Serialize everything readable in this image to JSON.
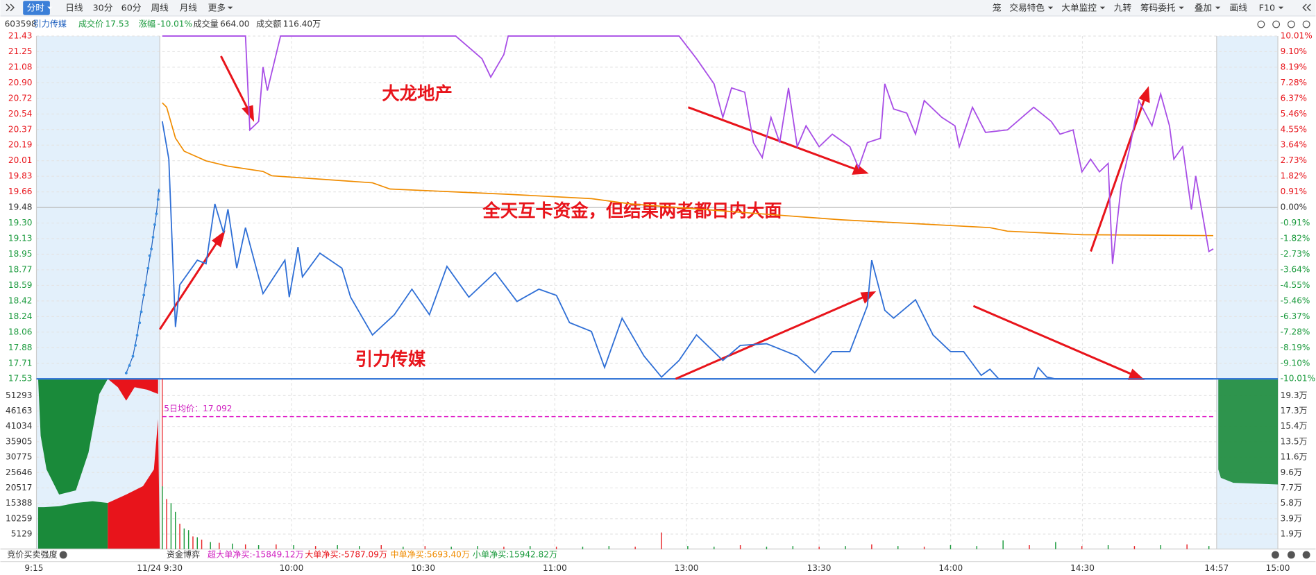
{
  "toolbar": {
    "left": [
      "分时",
      "日线",
      "30分",
      "60分",
      "周线",
      "月线",
      "更多"
    ],
    "right": [
      "笼",
      "交易特色",
      "大单监控",
      "九转",
      "筹码委托",
      "叠加",
      "画线",
      "F10"
    ]
  },
  "info": {
    "code": "603598",
    "name": "引力传媒",
    "price_label": "成交价",
    "price": "17.53",
    "change_label": "涨幅",
    "change": "-10.01%",
    "volume_label": "成交量",
    "volume": "664.00",
    "amount_label": "成交额",
    "amount": "116.40万"
  },
  "price_axis": {
    "left": [
      "21.43",
      "21.25",
      "21.08",
      "20.90",
      "20.72",
      "20.54",
      "20.37",
      "20.19",
      "20.01",
      "19.83",
      "19.66",
      "19.48",
      "19.30",
      "19.13",
      "18.95",
      "18.77",
      "18.59",
      "18.42",
      "18.24",
      "18.06",
      "17.88",
      "17.71",
      "17.53"
    ],
    "right": [
      "10.01%",
      "9.10%",
      "8.19%",
      "7.28%",
      "6.37%",
      "5.46%",
      "4.55%",
      "3.64%",
      "2.73%",
      "1.82%",
      "0.91%",
      "0.00%",
      "-0.91%",
      "-1.82%",
      "-2.73%",
      "-3.64%",
      "-4.55%",
      "-5.46%",
      "-6.37%",
      "-7.28%",
      "-8.19%",
      "-9.10%",
      "-10.01%"
    ]
  },
  "volume_axis": {
    "left": [
      "51293",
      "46163",
      "41034",
      "35905",
      "30775",
      "25646",
      "20517",
      "15388",
      "10259",
      "5129"
    ],
    "right": [
      "19.3万",
      "17.3万",
      "15.4万",
      "13.5万",
      "11.6万",
      "9.6万",
      "7.7万",
      "5.8万",
      "3.9万",
      "1.9万"
    ]
  },
  "time_axis": [
    "9:15",
    "11/24 9:30",
    "10:00",
    "10:30",
    "11:00",
    "13:00",
    "13:30",
    "14:00",
    "14:30",
    "14:57",
    "15:00"
  ],
  "ma5_label": "5日均价：17.092",
  "annotations": [
    "大龙地产",
    "全天互卡资金，但结果两者都日内大面",
    "引力传媒"
  ],
  "price_line": {
    "minutes": [
      0,
      1.5,
      3,
      4,
      8,
      10,
      12,
      14,
      15,
      17,
      19,
      23,
      28,
      29,
      31,
      32,
      36,
      41,
      43,
      48,
      53,
      57,
      61,
      65,
      70,
      76,
      81,
      86,
      90,
      93,
      98,
      101,
      105,
      110,
      114,
      118,
      122,
      128,
      132,
      138,
      145,
      149,
      153,
      157,
      161,
      162,
      165,
      167,
      172,
      176,
      180,
      183,
      187,
      189,
      191,
      199,
      200,
      202,
      204,
      240
    ],
    "prices": [
      20.46,
      20.03,
      18.12,
      18.6,
      18.88,
      18.84,
      19.52,
      19.19,
      19.46,
      18.79,
      19.25,
      18.5,
      18.88,
      18.46,
      19.03,
      18.69,
      18.96,
      18.79,
      18.46,
      18.03,
      18.26,
      18.55,
      18.26,
      18.81,
      18.46,
      18.74,
      18.41,
      18.55,
      18.48,
      18.17,
      18.07,
      17.66,
      18.22,
      17.79,
      17.55,
      17.74,
      18.03,
      17.74,
      17.91,
      17.93,
      17.79,
      17.6,
      17.84,
      17.84,
      18.36,
      18.88,
      18.31,
      18.22,
      18.43,
      18.03,
      17.84,
      17.84,
      17.57,
      17.64,
      17.53,
      17.53,
      17.66,
      17.55,
      17.53,
      17.53
    ]
  },
  "avg_line": {
    "minutes": [
      0,
      1,
      3,
      5,
      10,
      15,
      23,
      25,
      48,
      52,
      79,
      98,
      107,
      136,
      155,
      174,
      189,
      193,
      210,
      240
    ],
    "prices": [
      20.67,
      20.62,
      20.27,
      20.12,
      20.01,
      19.95,
      19.89,
      19.84,
      19.76,
      19.69,
      19.63,
      19.58,
      19.52,
      19.41,
      19.34,
      19.29,
      19.25,
      19.21,
      19.17,
      19.16
    ]
  },
  "overlay_line": {
    "minutes": [
      0,
      19,
      20,
      22,
      23,
      24,
      27,
      67,
      73,
      75,
      78,
      79,
      118,
      122,
      126,
      128,
      130,
      133,
      135,
      137,
      139,
      141,
      143,
      145,
      147,
      150,
      153,
      157,
      159,
      161,
      164,
      165,
      167,
      170,
      172,
      174,
      178,
      181,
      182,
      185,
      188,
      193,
      199,
      203,
      205,
      208,
      210,
      212,
      214,
      216,
      217,
      219,
      221,
      223,
      226,
      228,
      230,
      231,
      233,
      235,
      236,
      239,
      240
    ],
    "percent": [
      10.01,
      10.01,
      4.53,
      5.02,
      8.2,
      6.83,
      10.01,
      10.01,
      8.69,
      7.61,
      8.93,
      10.01,
      10.01,
      8.69,
      7.22,
      5.26,
      6.98,
      6.73,
      3.79,
      2.91,
      5.26,
      3.79,
      6.98,
      3.55,
      4.77,
      3.55,
      4.28,
      3.55,
      2.32,
      3.79,
      4.04,
      7.22,
      5.75,
      5.51,
      4.28,
      6.24,
      5.26,
      4.77,
      3.55,
      5.85,
      4.38,
      4.53,
      5.85,
      5.02,
      4.28,
      4.53,
      2.08,
      2.82,
      2.08,
      2.57,
      -3.3,
      1.35,
      3.55,
      6.24,
      4.77,
      6.63,
      4.77,
      2.82,
      3.55,
      -0.12,
      1.84,
      -2.57,
      -2.42
    ]
  },
  "volume": {
    "minutes": [
      0,
      1,
      2,
      3,
      4,
      5,
      6,
      7,
      8,
      9,
      11,
      13,
      16,
      19,
      22,
      26,
      30,
      35,
      40,
      45,
      50,
      55,
      60,
      66,
      72,
      78,
      84,
      90,
      96,
      102,
      108,
      114,
      120,
      126,
      132,
      138,
      144,
      150,
      156,
      162,
      168,
      174,
      180,
      186,
      192,
      198,
      204,
      210,
      216,
      222,
      228,
      234,
      239
    ],
    "values": [
      7.9,
      6.3,
      5.8,
      4.7,
      3.2,
      2.6,
      2.4,
      1.6,
      1.5,
      1.2,
      0.9,
      0.8,
      0.7,
      0.6,
      0.5,
      0.6,
      0.5,
      0.4,
      0.5,
      0.4,
      0.5,
      0.3,
      0.4,
      0.3,
      0.4,
      0.3,
      0.4,
      0.3,
      0.3,
      0.4,
      0.3,
      2.1,
      0.4,
      0.3,
      0.5,
      0.3,
      0.4,
      0.3,
      0.4,
      0.6,
      0.4,
      0.3,
      0.5,
      0.4,
      1.1,
      0.5,
      0.9,
      0.4,
      0.5,
      0.4,
      0.5,
      0.6,
      0.4
    ],
    "colors": [
      "#1a9a3c",
      "#e8262a",
      "#1a9a3c",
      "#1a9a3c",
      "#e8262a",
      "#1a9a3c",
      "#1a9a3c",
      "#e8262a",
      "#1a9a3c",
      "#e8262a",
      "#1a9a3c",
      "#e8262a",
      "#1a9a3c",
      "#e8262a",
      "#1a9a3c",
      "#e8262a",
      "#1a9a3c",
      "#e8262a",
      "#1a9a3c",
      "#1a9a3c",
      "#e8262a",
      "#1a9a3c",
      "#e8262a",
      "#1a9a3c",
      "#1a9a3c",
      "#e8262a",
      "#1a9a3c",
      "#e8262a",
      "#1a9a3c",
      "#1a9a3c",
      "#e8262a",
      "#e8262a",
      "#1a9a3c",
      "#1a9a3c",
      "#e8262a",
      "#1a9a3c",
      "#1a9a3c",
      "#e8262a",
      "#1a9a3c",
      "#e8262a",
      "#1a9a3c",
      "#e8262a",
      "#1a9a3c",
      "#1a9a3c",
      "#1a9a3c",
      "#e8262a",
      "#1a9a3c",
      "#e8262a",
      "#1a9a3c",
      "#e8262a",
      "#1a9a3c",
      "#e8262a",
      "#1a9a3c"
    ]
  },
  "fund_flow": {
    "auction_title": "竞价买卖强度",
    "title": "资金博弈",
    "items": [
      "超大单净买:-15849.12万",
      "大单净买:-5787.09万",
      "中单净买:5693.40万",
      "小单净买:15942.82万"
    ]
  }
}
